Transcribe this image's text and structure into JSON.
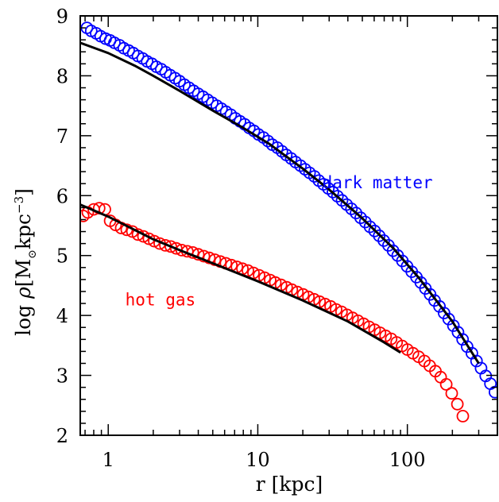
{
  "chart_data": {
    "type": "scatter",
    "x_scale": "log",
    "xlim": [
      0.65,
      400
    ],
    "ylim": [
      2,
      9
    ],
    "xlabel": "r [kpc]",
    "ylabel": {
      "prefix": "log ",
      "rho": "ρ",
      "open": "[M",
      "sun_symbol": "⊙",
      "mid": "kpc",
      "exponent": "−3",
      "close": "]"
    },
    "x_ticks": [
      {
        "value": 1,
        "label": "1"
      },
      {
        "value": 10,
        "label": "10"
      },
      {
        "value": 100,
        "label": "100"
      }
    ],
    "y_ticks": [
      {
        "value": 2,
        "label": "2"
      },
      {
        "value": 3,
        "label": "3"
      },
      {
        "value": 4,
        "label": "4"
      },
      {
        "value": 5,
        "label": "5"
      },
      {
        "value": 6,
        "label": "6"
      },
      {
        "value": 7,
        "label": "7"
      },
      {
        "value": 8,
        "label": "8"
      },
      {
        "value": 9,
        "label": "9"
      }
    ],
    "grid": false,
    "annotations": [
      {
        "text": "dark matter",
        "color": "#0000ff",
        "x": 27,
        "y": 6.12
      },
      {
        "text": "hot gas",
        "color": "#ff0000",
        "x": 1.3,
        "y": 4.17
      }
    ],
    "series": [
      {
        "color": "#0000ff",
        "marker": "open-circle",
        "x": [
          0.72,
          0.77,
          0.83,
          0.89,
          0.96,
          1.03,
          1.1,
          1.19,
          1.27,
          1.37,
          1.47,
          1.58,
          1.7,
          1.82,
          1.96,
          2.1,
          2.26,
          2.42,
          2.6,
          2.8,
          3.0,
          3.23,
          3.47,
          3.72,
          4.0,
          4.3,
          4.62,
          4.96,
          5.32,
          5.72,
          6.14,
          6.6,
          7.08,
          7.61,
          8.17,
          8.77,
          9.42,
          10.1,
          10.9,
          11.7,
          12.5,
          13.5,
          14.5,
          15.5,
          16.7,
          17.9,
          19.3,
          20.7,
          22.2,
          23.9,
          25.6,
          27.5,
          29.6,
          31.8,
          34.1,
          36.6,
          39.3,
          42.3,
          45.4,
          48.7,
          52.3,
          56.2,
          60.4,
          64.8,
          69.6,
          74.8,
          80.3,
          86.2,
          92.6,
          99.5,
          107,
          115,
          123,
          132,
          142,
          152,
          164,
          176,
          189,
          203,
          218,
          234,
          251,
          270,
          290,
          311,
          334,
          359,
          385
        ],
        "y": [
          8.8,
          8.75,
          8.71,
          8.66,
          8.62,
          8.59,
          8.55,
          8.51,
          8.46,
          8.42,
          8.38,
          8.33,
          8.29,
          8.24,
          8.2,
          8.15,
          8.11,
          8.06,
          8.01,
          7.96,
          7.91,
          7.85,
          7.8,
          7.75,
          7.7,
          7.65,
          7.6,
          7.55,
          7.5,
          7.45,
          7.4,
          7.35,
          7.29,
          7.24,
          7.19,
          7.13,
          7.08,
          7.02,
          6.97,
          6.91,
          6.85,
          6.8,
          6.74,
          6.68,
          6.62,
          6.56,
          6.5,
          6.44,
          6.38,
          6.32,
          6.25,
          6.19,
          6.12,
          6.06,
          5.99,
          5.92,
          5.85,
          5.78,
          5.71,
          5.63,
          5.56,
          5.48,
          5.41,
          5.33,
          5.25,
          5.17,
          5.08,
          5.0,
          4.91,
          4.82,
          4.73,
          4.64,
          4.55,
          4.45,
          4.35,
          4.25,
          4.15,
          4.04,
          3.94,
          3.83,
          3.72,
          3.6,
          3.48,
          3.37,
          3.24,
          3.12,
          2.99,
          2.86,
          2.72
        ]
      },
      {
        "color": "#ff0000",
        "marker": "open-circle",
        "x": [
          0.68,
          0.73,
          0.8,
          0.87,
          0.95,
          1.03,
          1.12,
          1.22,
          1.33,
          1.45,
          1.58,
          1.72,
          1.87,
          2.03,
          2.21,
          2.41,
          2.62,
          2.85,
          3.1,
          3.38,
          3.68,
          4.0,
          4.36,
          4.74,
          5.16,
          5.62,
          6.12,
          6.66,
          7.25,
          7.89,
          8.59,
          9.35,
          10.2,
          11.1,
          12.1,
          13.1,
          14.3,
          15.6,
          16.9,
          18.4,
          20.1,
          21.8,
          23.8,
          25.9,
          28.2,
          30.7,
          33.4,
          36.3,
          39.5,
          43.0,
          46.8,
          51.0,
          55.5,
          60.4,
          65.7,
          71.5,
          77.9,
          84.8,
          92.3,
          100,
          109,
          119,
          130,
          141,
          154,
          167,
          182,
          198,
          216,
          235
        ],
        "y": [
          5.66,
          5.72,
          5.77,
          5.79,
          5.77,
          5.58,
          5.51,
          5.46,
          5.43,
          5.4,
          5.35,
          5.32,
          5.28,
          5.24,
          5.2,
          5.17,
          5.15,
          5.12,
          5.09,
          5.07,
          5.05,
          5.02,
          4.99,
          4.96,
          4.93,
          4.9,
          4.87,
          4.84,
          4.81,
          4.78,
          4.75,
          4.71,
          4.67,
          4.63,
          4.59,
          4.55,
          4.51,
          4.47,
          4.43,
          4.39,
          4.35,
          4.31,
          4.27,
          4.23,
          4.19,
          4.15,
          4.1,
          4.06,
          4.01,
          3.96,
          3.91,
          3.86,
          3.81,
          3.76,
          3.71,
          3.66,
          3.61,
          3.55,
          3.49,
          3.43,
          3.37,
          3.31,
          3.24,
          3.16,
          3.07,
          2.97,
          2.85,
          2.7,
          2.52,
          2.32
        ]
      },
      {
        "color": "#000000",
        "marker": "line",
        "x": [
          0.65,
          1.0,
          1.5,
          2.0,
          3.0,
          5.0,
          8.0,
          12.0,
          20.0,
          30.0,
          50.0,
          80.0,
          120.0,
          200.0,
          300.0
        ],
        "y": [
          8.55,
          8.38,
          8.17,
          8.0,
          7.75,
          7.42,
          7.13,
          6.86,
          6.45,
          6.1,
          5.62,
          5.13,
          4.62,
          3.9,
          3.2
        ]
      },
      {
        "color": "#000000",
        "marker": "line",
        "x": [
          0.65,
          1.0,
          2.0,
          3.0,
          5.0,
          10.0,
          20.0,
          40.0,
          70.0,
          90.0
        ],
        "y": [
          5.85,
          5.65,
          5.27,
          5.09,
          4.87,
          4.57,
          4.25,
          3.9,
          3.55,
          3.38
        ]
      }
    ]
  }
}
